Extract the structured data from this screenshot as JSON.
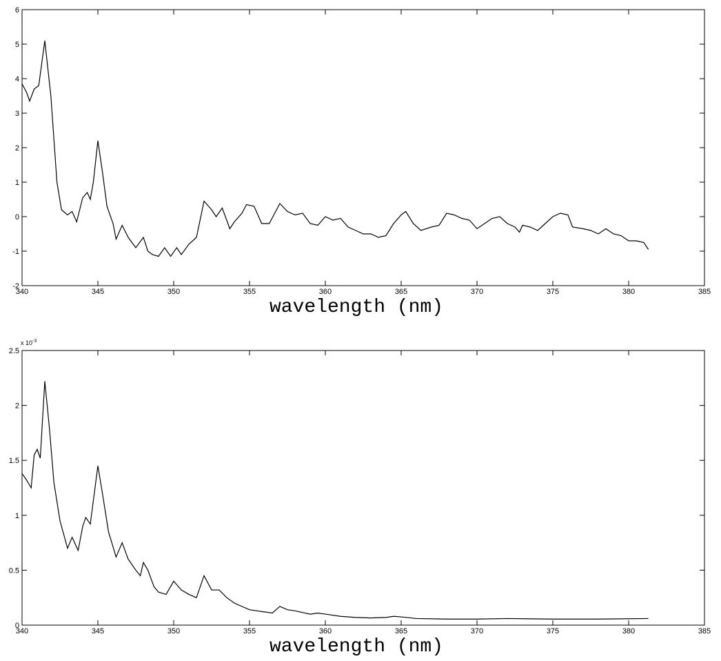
{
  "chart_data": [
    {
      "type": "line",
      "xlabel": "wavelength (nm)",
      "xlim": [
        340,
        385
      ],
      "xticks": [
        340,
        345,
        350,
        355,
        360,
        365,
        370,
        375,
        380,
        385
      ],
      "ylim": [
        -2,
        6
      ],
      "yticks": [
        -2,
        -1,
        0,
        1,
        2,
        3,
        4,
        5,
        6
      ],
      "series": [
        {
          "color": "#000000",
          "x": [
            340,
            340.3,
            340.5,
            340.8,
            341.1,
            341.5,
            341.9,
            342.3,
            342.6,
            343.0,
            343.3,
            343.6,
            344.0,
            344.3,
            344.5,
            344.7,
            345.0,
            345.3,
            345.6,
            346.0,
            346.2,
            346.6,
            347.0,
            347.5,
            348.0,
            348.3,
            348.6,
            349.0,
            349.4,
            349.8,
            350.2,
            350.5,
            351.0,
            351.5,
            352.0,
            352.5,
            352.8,
            353.2,
            353.7,
            354.0,
            354.5,
            354.8,
            355.3,
            355.8,
            356.3,
            357.0,
            357.5,
            358.0,
            358.5,
            359.0,
            359.5,
            360.0,
            360.5,
            361.0,
            361.5,
            362.0,
            362.5,
            363.0,
            363.5,
            364.0,
            364.5,
            365.0,
            365.3,
            365.8,
            366.3,
            367.0,
            367.5,
            368.0,
            368.5,
            369.0,
            369.5,
            370.0,
            370.5,
            371.0,
            371.5,
            372.0,
            372.5,
            372.8,
            373.0,
            373.5,
            374.0,
            374.5,
            375.0,
            375.5,
            376.0,
            376.3,
            377.0,
            377.5,
            378.0,
            378.5,
            379.0,
            379.5,
            380.0,
            380.5,
            381.0,
            381.3
          ],
          "values": [
            3.85,
            3.6,
            3.35,
            3.7,
            3.8,
            5.1,
            3.5,
            1.0,
            0.2,
            0.05,
            0.15,
            -0.15,
            0.55,
            0.7,
            0.5,
            1.0,
            2.2,
            1.3,
            0.3,
            -0.2,
            -0.65,
            -0.25,
            -0.6,
            -0.9,
            -0.6,
            -1.0,
            -1.1,
            -1.15,
            -0.9,
            -1.15,
            -0.9,
            -1.1,
            -0.8,
            -0.6,
            0.45,
            0.2,
            0.0,
            0.25,
            -0.35,
            -0.15,
            0.1,
            0.35,
            0.3,
            -0.2,
            -0.2,
            0.38,
            0.15,
            0.05,
            0.1,
            -0.2,
            -0.25,
            0.0,
            -0.1,
            -0.05,
            -0.3,
            -0.4,
            -0.5,
            -0.5,
            -0.6,
            -0.55,
            -0.2,
            0.05,
            0.15,
            -0.2,
            -0.4,
            -0.3,
            -0.25,
            0.1,
            0.05,
            -0.05,
            -0.1,
            -0.35,
            -0.2,
            -0.05,
            0.0,
            -0.2,
            -0.3,
            -0.45,
            -0.25,
            -0.3,
            -0.4,
            -0.2,
            0.0,
            0.1,
            0.05,
            -0.3,
            -0.35,
            -0.4,
            -0.5,
            -0.35,
            -0.5,
            -0.55,
            -0.7,
            -0.7,
            -0.75,
            -0.95
          ]
        }
      ]
    },
    {
      "type": "line",
      "xlabel": "wavelength (nm)",
      "y_multiplier": "x 10",
      "y_multiplier_exponent": "-3",
      "xlim": [
        340,
        385
      ],
      "xticks": [
        340,
        345,
        350,
        355,
        360,
        365,
        370,
        375,
        380,
        385
      ],
      "ylim": [
        0,
        2.5
      ],
      "yticks": [
        0,
        0.5,
        1,
        1.5,
        2,
        2.5
      ],
      "series": [
        {
          "color": "#000000",
          "x": [
            340,
            340.3,
            340.6,
            340.8,
            341.0,
            341.2,
            341.5,
            341.8,
            342.1,
            342.5,
            343.0,
            343.3,
            343.7,
            344.0,
            344.2,
            344.5,
            345.0,
            345.3,
            345.7,
            346.2,
            346.6,
            347.0,
            347.5,
            347.8,
            348.0,
            348.3,
            348.7,
            349.0,
            349.5,
            350.0,
            350.5,
            351.0,
            351.5,
            352.0,
            352.5,
            353.0,
            353.5,
            354.0,
            355.0,
            356.0,
            356.5,
            357.0,
            357.5,
            358.0,
            359.0,
            359.5,
            360.0,
            361.0,
            362.0,
            363.0,
            364.0,
            364.5,
            365.0,
            366.0,
            368.0,
            370.0,
            372.0,
            375.0,
            378.0,
            381.3
          ],
          "values": [
            1.38,
            1.32,
            1.25,
            1.55,
            1.6,
            1.52,
            2.22,
            1.8,
            1.3,
            0.95,
            0.7,
            0.8,
            0.68,
            0.9,
            0.98,
            0.92,
            1.45,
            1.2,
            0.85,
            0.62,
            0.75,
            0.6,
            0.5,
            0.45,
            0.57,
            0.5,
            0.35,
            0.3,
            0.28,
            0.4,
            0.32,
            0.28,
            0.25,
            0.45,
            0.32,
            0.32,
            0.25,
            0.2,
            0.14,
            0.12,
            0.11,
            0.17,
            0.14,
            0.13,
            0.1,
            0.11,
            0.1,
            0.08,
            0.07,
            0.065,
            0.07,
            0.08,
            0.075,
            0.06,
            0.055,
            0.055,
            0.06,
            0.055,
            0.055,
            0.06
          ]
        }
      ]
    }
  ]
}
